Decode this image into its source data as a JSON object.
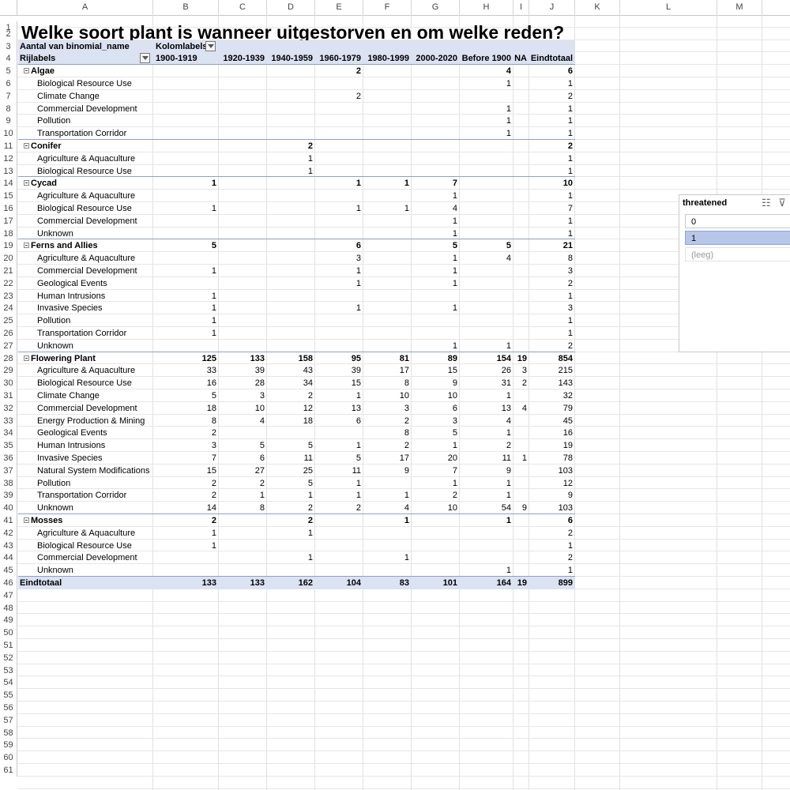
{
  "sheet": {
    "title": "Welke soort plant is wanneer uitgestorven en om welke reden?",
    "columns": [
      "A",
      "B",
      "C",
      "D",
      "E",
      "F",
      "G",
      "H",
      "I",
      "J",
      "K",
      "L",
      "M"
    ],
    "row_count": 61
  },
  "pivot": {
    "value_label": "Aantal van binomial_name",
    "col_labels_caption": "Kolomlabels",
    "row_labels_caption": "Rijlabels",
    "col_headers": [
      "1900-1919",
      "1920-1939",
      "1940-1959",
      "1960-1979",
      "1980-1999",
      "2000-2020",
      "Before 1900",
      "NA",
      "Eindtotaal"
    ],
    "rows": [
      {
        "label": "Algae",
        "level": 0,
        "values": [
          "",
          "",
          "",
          "2",
          "",
          "",
          "4",
          "",
          "6"
        ]
      },
      {
        "label": "Biological Resource Use",
        "level": 1,
        "values": [
          "",
          "",
          "",
          "",
          "",
          "",
          "1",
          "",
          "1"
        ]
      },
      {
        "label": "Climate Change",
        "level": 1,
        "values": [
          "",
          "",
          "",
          "2",
          "",
          "",
          "",
          "",
          "2"
        ]
      },
      {
        "label": "Commercial Development",
        "level": 1,
        "values": [
          "",
          "",
          "",
          "",
          "",
          "",
          "1",
          "",
          "1"
        ]
      },
      {
        "label": "Pollution",
        "level": 1,
        "values": [
          "",
          "",
          "",
          "",
          "",
          "",
          "1",
          "",
          "1"
        ]
      },
      {
        "label": "Transportation Corridor",
        "level": 1,
        "values": [
          "",
          "",
          "",
          "",
          "",
          "",
          "1",
          "",
          "1"
        ]
      },
      {
        "label": "Conifer",
        "level": 0,
        "values": [
          "",
          "",
          "2",
          "",
          "",
          "",
          "",
          "",
          "2"
        ]
      },
      {
        "label": "Agriculture & Aquaculture",
        "level": 1,
        "values": [
          "",
          "",
          "1",
          "",
          "",
          "",
          "",
          "",
          "1"
        ]
      },
      {
        "label": "Biological Resource Use",
        "level": 1,
        "values": [
          "",
          "",
          "1",
          "",
          "",
          "",
          "",
          "",
          "1"
        ]
      },
      {
        "label": "Cycad",
        "level": 0,
        "values": [
          "1",
          "",
          "",
          "1",
          "1",
          "7",
          "",
          "",
          "10"
        ]
      },
      {
        "label": "Agriculture & Aquaculture",
        "level": 1,
        "values": [
          "",
          "",
          "",
          "",
          "",
          "1",
          "",
          "",
          "1"
        ]
      },
      {
        "label": "Biological Resource Use",
        "level": 1,
        "values": [
          "1",
          "",
          "",
          "1",
          "1",
          "4",
          "",
          "",
          "7"
        ]
      },
      {
        "label": "Commercial Development",
        "level": 1,
        "values": [
          "",
          "",
          "",
          "",
          "",
          "1",
          "",
          "",
          "1"
        ]
      },
      {
        "label": "Unknown",
        "level": 1,
        "values": [
          "",
          "",
          "",
          "",
          "",
          "1",
          "",
          "",
          "1"
        ]
      },
      {
        "label": "Ferns and Allies",
        "level": 0,
        "values": [
          "5",
          "",
          "",
          "6",
          "",
          "5",
          "5",
          "",
          "21"
        ]
      },
      {
        "label": "Agriculture & Aquaculture",
        "level": 1,
        "values": [
          "",
          "",
          "",
          "3",
          "",
          "1",
          "4",
          "",
          "8"
        ]
      },
      {
        "label": "Commercial Development",
        "level": 1,
        "values": [
          "1",
          "",
          "",
          "1",
          "",
          "1",
          "",
          "",
          "3"
        ]
      },
      {
        "label": "Geological Events",
        "level": 1,
        "values": [
          "",
          "",
          "",
          "1",
          "",
          "1",
          "",
          "",
          "2"
        ]
      },
      {
        "label": "Human Intrusions",
        "level": 1,
        "values": [
          "1",
          "",
          "",
          "",
          "",
          "",
          "",
          "",
          "1"
        ]
      },
      {
        "label": "Invasive Species",
        "level": 1,
        "values": [
          "1",
          "",
          "",
          "1",
          "",
          "1",
          "",
          "",
          "3"
        ]
      },
      {
        "label": "Pollution",
        "level": 1,
        "values": [
          "1",
          "",
          "",
          "",
          "",
          "",
          "",
          "",
          "1"
        ]
      },
      {
        "label": "Transportation Corridor",
        "level": 1,
        "values": [
          "1",
          "",
          "",
          "",
          "",
          "",
          "",
          "",
          "1"
        ]
      },
      {
        "label": "Unknown",
        "level": 1,
        "values": [
          "",
          "",
          "",
          "",
          "",
          "1",
          "1",
          "",
          "2"
        ]
      },
      {
        "label": "Flowering Plant",
        "level": 0,
        "values": [
          "125",
          "133",
          "158",
          "95",
          "81",
          "89",
          "154",
          "19",
          "854"
        ]
      },
      {
        "label": "Agriculture & Aquaculture",
        "level": 1,
        "values": [
          "33",
          "39",
          "43",
          "39",
          "17",
          "15",
          "26",
          "3",
          "215"
        ]
      },
      {
        "label": "Biological Resource Use",
        "level": 1,
        "values": [
          "16",
          "28",
          "34",
          "15",
          "8",
          "9",
          "31",
          "2",
          "143"
        ]
      },
      {
        "label": "Climate Change",
        "level": 1,
        "values": [
          "5",
          "3",
          "2",
          "1",
          "10",
          "10",
          "1",
          "",
          "32"
        ]
      },
      {
        "label": "Commercial Development",
        "level": 1,
        "values": [
          "18",
          "10",
          "12",
          "13",
          "3",
          "6",
          "13",
          "4",
          "79"
        ]
      },
      {
        "label": "Energy Production & Mining",
        "level": 1,
        "values": [
          "8",
          "4",
          "18",
          "6",
          "2",
          "3",
          "4",
          "",
          "45"
        ]
      },
      {
        "label": "Geological Events",
        "level": 1,
        "values": [
          "2",
          "",
          "",
          "",
          "8",
          "5",
          "1",
          "",
          "16"
        ]
      },
      {
        "label": "Human Intrusions",
        "level": 1,
        "values": [
          "3",
          "5",
          "5",
          "1",
          "2",
          "1",
          "2",
          "",
          "19"
        ]
      },
      {
        "label": "Invasive Species",
        "level": 1,
        "values": [
          "7",
          "6",
          "11",
          "5",
          "17",
          "20",
          "11",
          "1",
          "78"
        ]
      },
      {
        "label": "Natural System Modifications",
        "level": 1,
        "values": [
          "15",
          "27",
          "25",
          "11",
          "9",
          "7",
          "9",
          "",
          "103"
        ]
      },
      {
        "label": "Pollution",
        "level": 1,
        "values": [
          "2",
          "2",
          "5",
          "1",
          "",
          "1",
          "1",
          "",
          "12"
        ]
      },
      {
        "label": "Transportation Corridor",
        "level": 1,
        "values": [
          "2",
          "1",
          "1",
          "1",
          "1",
          "2",
          "1",
          "",
          "9"
        ]
      },
      {
        "label": "Unknown",
        "level": 1,
        "values": [
          "14",
          "8",
          "2",
          "2",
          "4",
          "10",
          "54",
          "9",
          "103"
        ]
      },
      {
        "label": "Mosses",
        "level": 0,
        "values": [
          "2",
          "",
          "2",
          "",
          "1",
          "",
          "1",
          "",
          "6"
        ]
      },
      {
        "label": "Agriculture & Aquaculture",
        "level": 1,
        "values": [
          "1",
          "",
          "1",
          "",
          "",
          "",
          "",
          "",
          "2"
        ]
      },
      {
        "label": "Biological Resource Use",
        "level": 1,
        "values": [
          "1",
          "",
          "",
          "",
          "",
          "",
          "",
          "",
          "1"
        ]
      },
      {
        "label": "Commercial Development",
        "level": 1,
        "values": [
          "",
          "",
          "1",
          "",
          "1",
          "",
          "",
          "",
          "2"
        ]
      },
      {
        "label": "Unknown",
        "level": 1,
        "values": [
          "",
          "",
          "",
          "",
          "",
          "",
          "1",
          "",
          "1"
        ]
      }
    ],
    "grand_total": {
      "label": "Eindtotaal",
      "values": [
        "133",
        "133",
        "162",
        "104",
        "83",
        "101",
        "164",
        "19",
        "899"
      ]
    }
  },
  "slicer": {
    "title": "threatened",
    "icons": [
      "multi-select-icon",
      "clear-filter-icon"
    ],
    "items": [
      {
        "label": "0",
        "selected": false
      },
      {
        "label": "1",
        "selected": true
      },
      {
        "label": "(leeg)",
        "selected": false
      }
    ]
  },
  "colors": {
    "pivot_band": "#dbe2f2",
    "slicer_selected": "#b7c7e9"
  }
}
